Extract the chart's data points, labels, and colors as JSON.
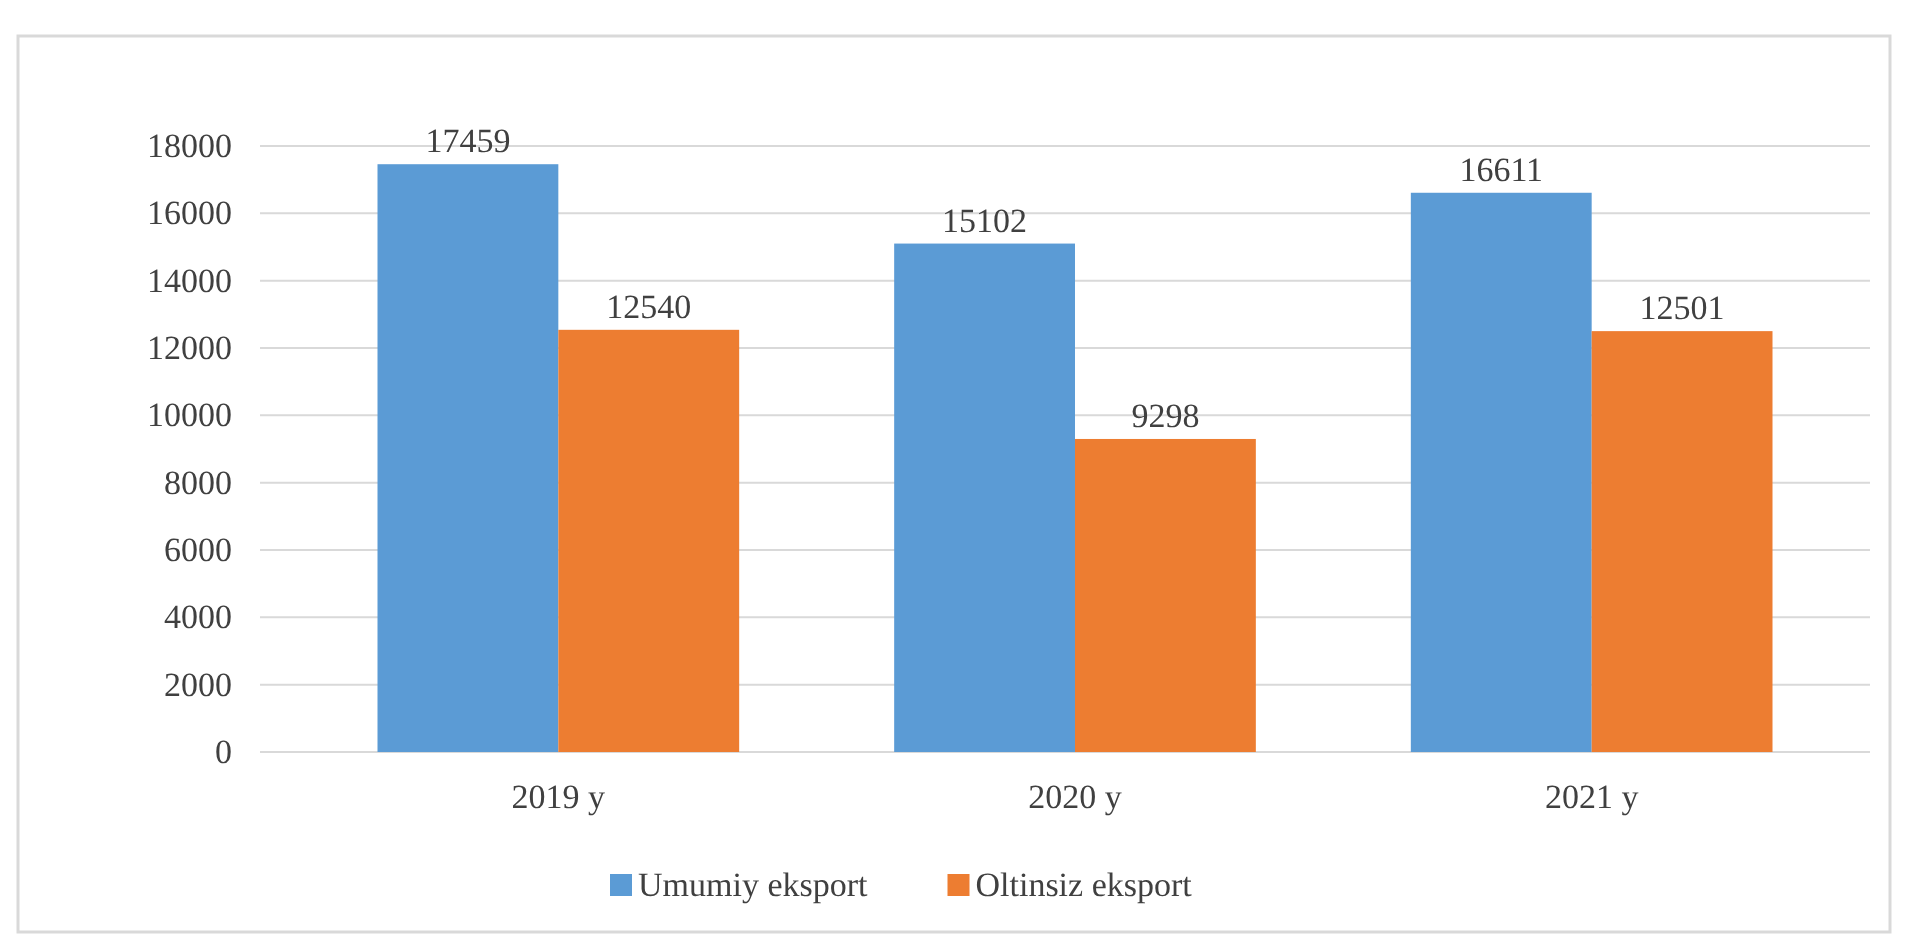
{
  "chart_data": {
    "type": "bar",
    "categories": [
      "2019 y",
      "2020 y",
      "2021 y"
    ],
    "series": [
      {
        "name": "Umumiy eksport",
        "color": "#5b9bd5",
        "values": [
          17459,
          15102,
          16611
        ]
      },
      {
        "name": "Oltinsiz eksport",
        "color": "#ed7d31",
        "values": [
          12540,
          9298,
          12501
        ]
      }
    ],
    "ylim": [
      0,
      18000
    ],
    "yticks": [
      0,
      2000,
      4000,
      6000,
      8000,
      10000,
      12000,
      14000,
      16000,
      18000
    ],
    "grid": "y",
    "data_labels": true,
    "legend": "bottom"
  }
}
